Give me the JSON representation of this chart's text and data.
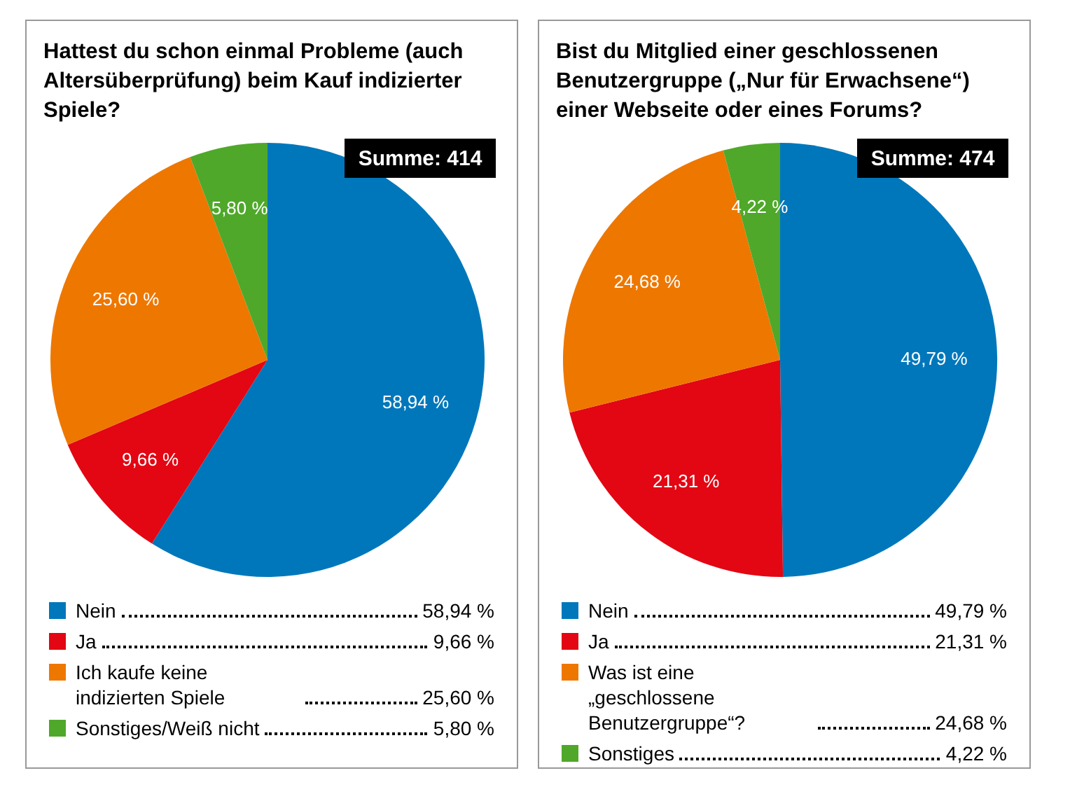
{
  "chart_data": [
    {
      "type": "pie",
      "title": "Hattest du schon einmal Probleme (auch Altersüberprüfung) beim Kauf indizierter Spiele?",
      "categories": [
        "Nein",
        "Ja",
        "Ich kaufe keine indizierten Spiele",
        "Sonstiges/Weiß nicht"
      ],
      "values": [
        58.94,
        9.66,
        25.6,
        5.8
      ],
      "value_labels": [
        "58,94 %",
        "9,66 %",
        "25,60 %",
        "5,80 %"
      ],
      "colors": [
        "#0077bb",
        "#e30613",
        "#ee7700",
        "#4fa82a"
      ],
      "annotations": [
        "Summe: 414"
      ],
      "legend": "bottom"
    },
    {
      "type": "pie",
      "title": "Bist du Mitglied einer geschlossenen Benutzergruppe („Nur für Erwachsene“) einer Webseite oder eines Forums?",
      "categories": [
        "Nein",
        "Ja",
        "Was ist eine „geschlossene Benutzergruppe“?",
        "Sonstiges"
      ],
      "values": [
        49.79,
        21.31,
        24.68,
        4.22
      ],
      "value_labels": [
        "49,79 %",
        "21,31 %",
        "24,68 %",
        "4,22 %"
      ],
      "colors": [
        "#0077bb",
        "#e30613",
        "#ee7700",
        "#4fa82a"
      ],
      "annotations": [
        "Summe: 474"
      ],
      "legend": "bottom"
    }
  ]
}
